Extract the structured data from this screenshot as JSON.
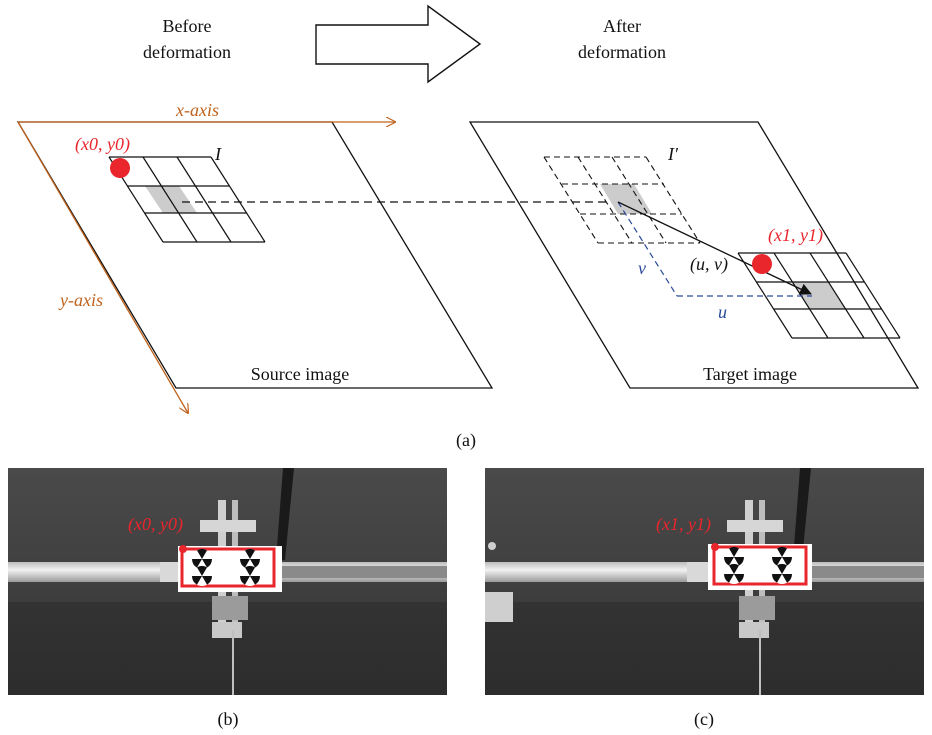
{
  "diagram": {
    "before_label": [
      "Before",
      "deformation"
    ],
    "after_label": [
      "After",
      "deformation"
    ],
    "x_axis_label": "x-axis",
    "y_axis_label": "y-axis",
    "source_corner_label": "(x0, y0)",
    "source_subset_label": "I",
    "target_subset_label": "I′",
    "target_corner_label": "(x1, y1)",
    "displacement_label": "(u, v)",
    "u_label": "u",
    "v_label": "v",
    "source_image_label": "Source image",
    "target_image_label": "Target image",
    "panel_a_caption": "(a)",
    "panel_b_caption": "(b)",
    "panel_c_caption": "(c)",
    "photo_b_corner_label": "(x0, y0)",
    "photo_c_corner_label": "(x1, y1)",
    "colors": {
      "axis": "#c0631e",
      "highlight": "#e8262c",
      "displacement": "#2a4a9a",
      "subset_fill": "#cccccc",
      "photo_background": "#3a3a3a"
    }
  }
}
